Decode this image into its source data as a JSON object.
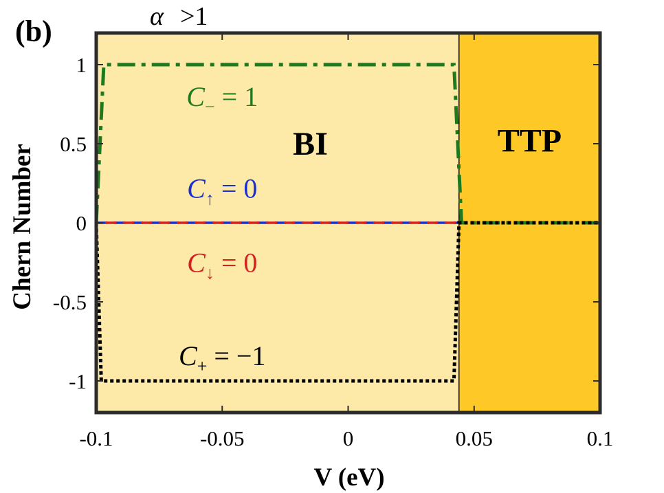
{
  "panel_label": "(b)",
  "condition": {
    "symbol": "α",
    "text": ">1"
  },
  "chart_data": {
    "type": "line",
    "xlabel": "V (eV)",
    "ylabel": "Chern Number",
    "xlim": [
      -0.1,
      0.1
    ],
    "ylim": [
      -1.2,
      1.2
    ],
    "x_ticks": [
      -0.1,
      -0.05,
      0,
      0.05,
      0.1
    ],
    "x_tick_labels": [
      "-0.1",
      "-0.05",
      "0",
      "0.05",
      "0.1"
    ],
    "y_ticks": [
      1,
      0.5,
      0,
      -0.5,
      -1
    ],
    "y_tick_labels": [
      "1",
      "0.5",
      "0",
      "-0.5",
      "-1"
    ],
    "grid": false,
    "regions": [
      {
        "label": "BI",
        "x_range": [
          -0.1,
          0.044
        ],
        "color": "#fde9a8"
      },
      {
        "label": "TTP",
        "x_range": [
          0.044,
          0.1
        ],
        "color": "#fec927"
      }
    ],
    "phase_boundary_x": 0.044,
    "series": [
      {
        "name": "C_− = 1",
        "label_main": "C",
        "label_sub": "−",
        "label_rest": " = 1",
        "color": "#1f7a1f",
        "style": "dashdot",
        "x": [
          -0.1,
          -0.097,
          0.042,
          0.045,
          0.1
        ],
        "y": [
          0,
          1,
          1,
          0,
          0
        ]
      },
      {
        "name": "C_↑ = 0",
        "label_main": "C",
        "label_sub": "↑",
        "label_rest": " = 0",
        "color": "#1a2fd0",
        "style": "dashed",
        "x": [
          -0.1,
          0.044
        ],
        "y": [
          0,
          0
        ]
      },
      {
        "name": "C_↓ = 0",
        "label_main": "C",
        "label_sub": "↓",
        "label_rest": " = 0",
        "color": "#d42020",
        "style": "dashed",
        "x": [
          -0.1,
          0.044
        ],
        "y": [
          0,
          0
        ]
      },
      {
        "name": "C_+ = −1",
        "label_main": "C",
        "label_sub": "+",
        "label_rest": " = −1",
        "color": "#000000",
        "style": "dotted",
        "x": [
          -0.1,
          -0.098,
          0.042,
          0.044,
          0.1
        ],
        "y": [
          0,
          -1,
          -1,
          0,
          0
        ]
      }
    ]
  }
}
